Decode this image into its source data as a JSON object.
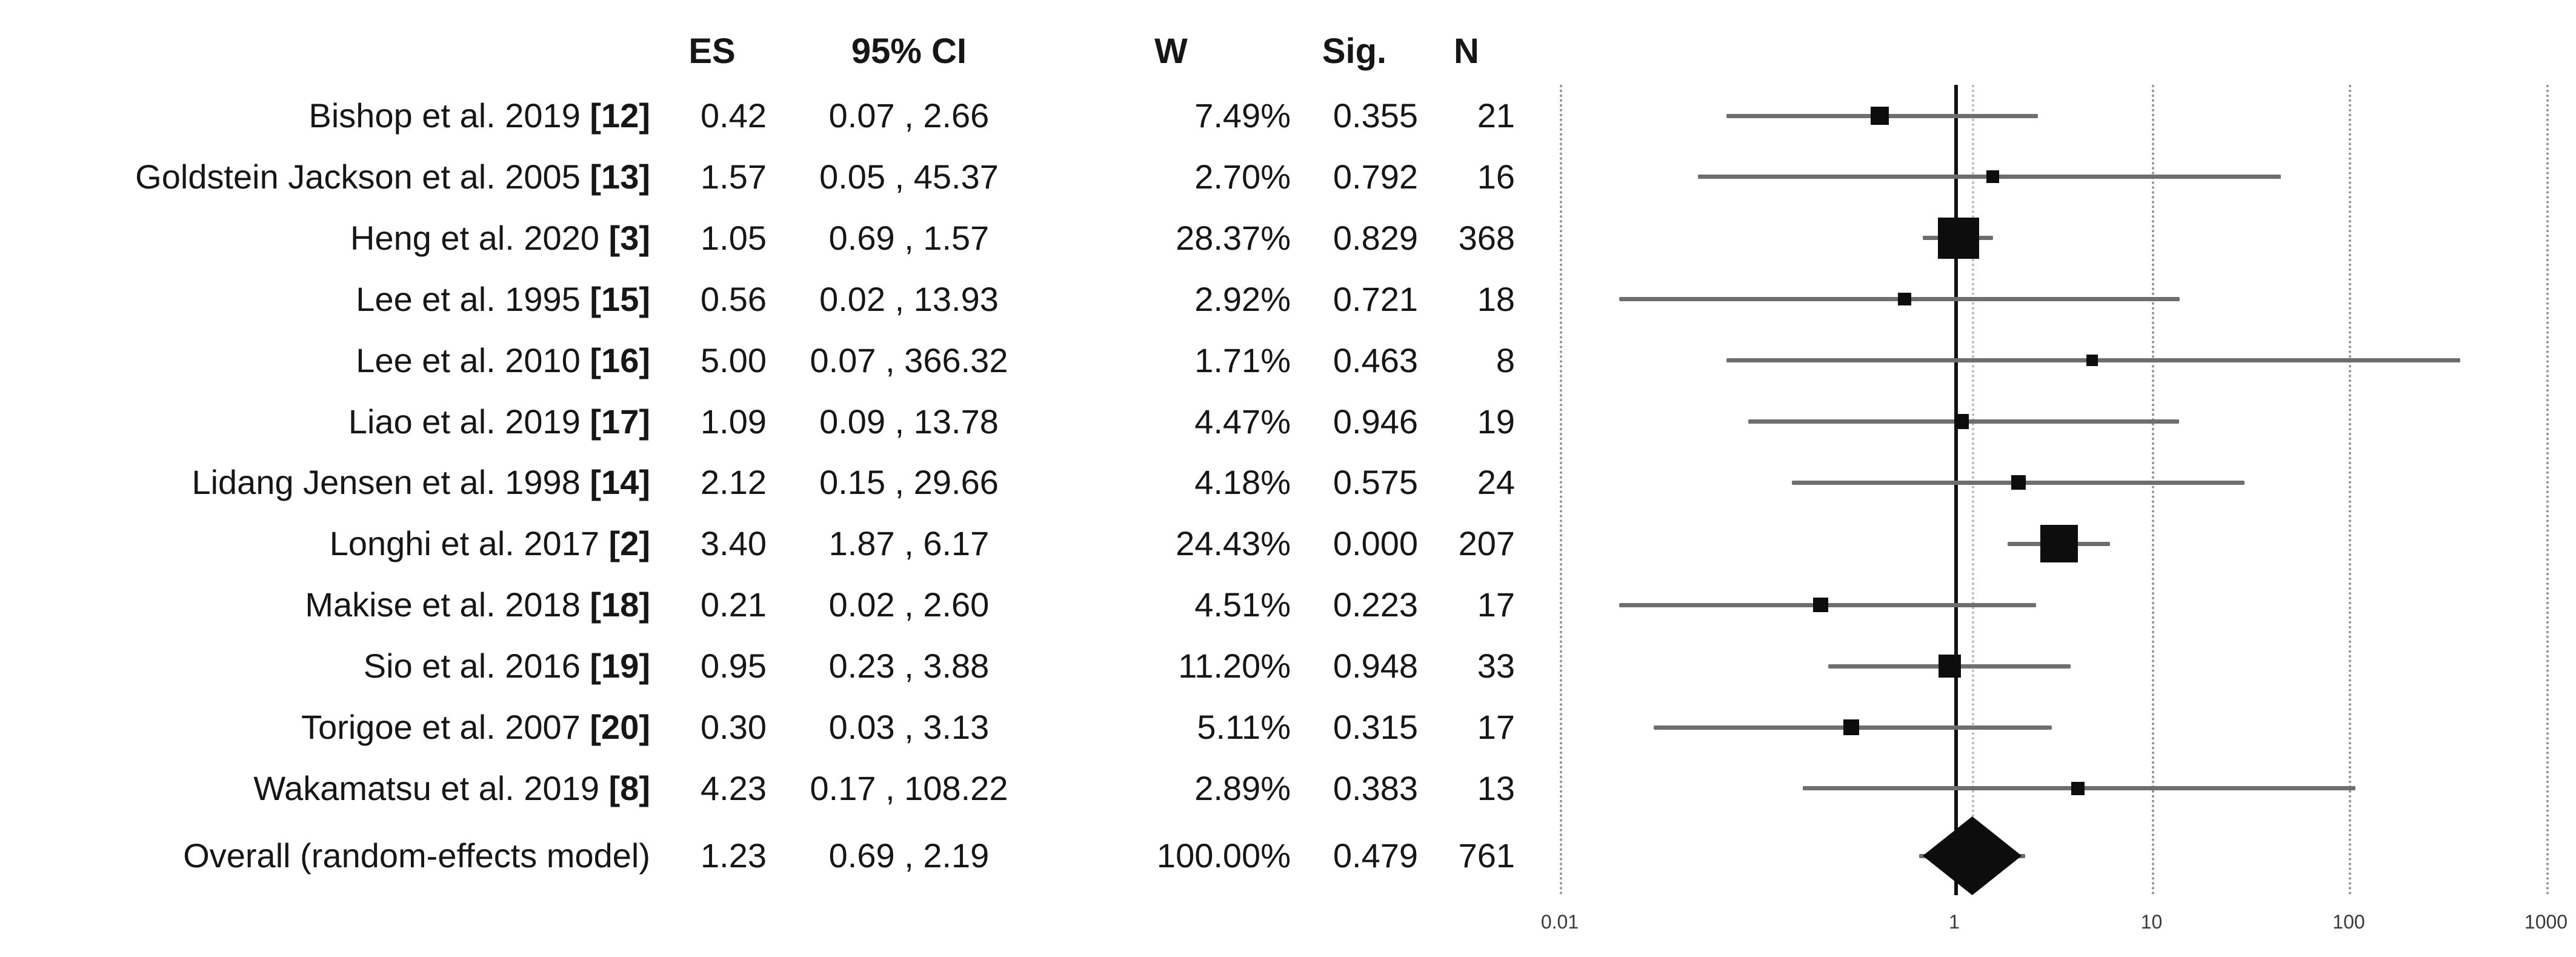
{
  "table": {
    "headers": {
      "study": "",
      "es": "ES",
      "ci": "95% CI",
      "w": "W",
      "sig": "Sig.",
      "n": "N"
    },
    "rows": [
      {
        "study": "Bishop et al. 2019",
        "ref": "[12]",
        "es": "0.42",
        "ci": "0.07 , 2.66",
        "w": "7.49%",
        "sig": "0.355",
        "n": "21"
      },
      {
        "study": "Goldstein Jackson et al. 2005",
        "ref": "[13]",
        "es": "1.57",
        "ci": "0.05 , 45.37",
        "w": "2.70%",
        "sig": "0.792",
        "n": "16"
      },
      {
        "study": "Heng et al. 2020",
        "ref": "[3]",
        "es": "1.05",
        "ci": "0.69 , 1.57",
        "w": "28.37%",
        "sig": "0.829",
        "n": "368"
      },
      {
        "study": "Lee et al. 1995",
        "ref": "[15]",
        "es": "0.56",
        "ci": "0.02 , 13.93",
        "w": "2.92%",
        "sig": "0.721",
        "n": "18"
      },
      {
        "study": "Lee et al. 2010",
        "ref": "[16]",
        "es": "5.00",
        "ci": "0.07 , 366.32",
        "w": "1.71%",
        "sig": "0.463",
        "n": "8"
      },
      {
        "study": "Liao et al. 2019",
        "ref": "[17]",
        "es": "1.09",
        "ci": "0.09 , 13.78",
        "w": "4.47%",
        "sig": "0.946",
        "n": "19"
      },
      {
        "study": "Lidang Jensen et al. 1998",
        "ref": "[14]",
        "es": "2.12",
        "ci": "0.15 , 29.66",
        "w": "4.18%",
        "sig": "0.575",
        "n": "24"
      },
      {
        "study": "Longhi et al. 2017",
        "ref": "[2]",
        "es": "3.40",
        "ci": "1.87 , 6.17",
        "w": "24.43%",
        "sig": "0.000",
        "n": "207"
      },
      {
        "study": "Makise et al. 2018",
        "ref": "[18]",
        "es": "0.21",
        "ci": "0.02 , 2.60",
        "w": "4.51%",
        "sig": "0.223",
        "n": "17"
      },
      {
        "study": "Sio et al. 2016",
        "ref": "[19]",
        "es": "0.95",
        "ci": "0.23 , 3.88",
        "w": "11.20%",
        "sig": "0.948",
        "n": "33"
      },
      {
        "study": "Torigoe et al. 2007",
        "ref": "[20]",
        "es": "0.30",
        "ci": "0.03 , 3.13",
        "w": "5.11%",
        "sig": "0.315",
        "n": "17"
      },
      {
        "study": "Wakamatsu et al. 2019",
        "ref": "[8]",
        "es": "4.23",
        "ci": "0.17 , 108.22",
        "w": "2.89%",
        "sig": "0.383",
        "n": "13"
      },
      {
        "study": "Overall (random-effects model)",
        "ref": "",
        "es": "1.23",
        "ci": "0.69 , 2.19",
        "w": "100.00%",
        "sig": "0.479",
        "n": "761"
      }
    ]
  },
  "chart_data": {
    "type": "forest",
    "x_scale": "log10",
    "x_ticks": [
      0.01,
      1,
      10,
      100,
      1000
    ],
    "x_tick_labels": [
      "0.01",
      "1",
      "10",
      "100",
      "1000"
    ],
    "no_effect_value": 1,
    "grid": "vertical-dotted-per-decade",
    "legend_position": "none",
    "studies": [
      {
        "name": "Bishop et al. 2019 [12]",
        "es": 0.42,
        "ci_low": 0.07,
        "ci_high": 2.66,
        "weight_pct": 7.49,
        "sig": 0.355,
        "n": 21
      },
      {
        "name": "Goldstein Jackson et al. 2005 [13]",
        "es": 1.57,
        "ci_low": 0.05,
        "ci_high": 45.37,
        "weight_pct": 2.7,
        "sig": 0.792,
        "n": 16
      },
      {
        "name": "Heng et al. 2020 [3]",
        "es": 1.05,
        "ci_low": 0.69,
        "ci_high": 1.57,
        "weight_pct": 28.37,
        "sig": 0.829,
        "n": 368
      },
      {
        "name": "Lee et al. 1995 [15]",
        "es": 0.56,
        "ci_low": 0.02,
        "ci_high": 13.93,
        "weight_pct": 2.92,
        "sig": 0.721,
        "n": 18
      },
      {
        "name": "Lee et al. 2010 [16]",
        "es": 5.0,
        "ci_low": 0.07,
        "ci_high": 366.32,
        "weight_pct": 1.71,
        "sig": 0.463,
        "n": 8
      },
      {
        "name": "Liao et al. 2019 [17]",
        "es": 1.09,
        "ci_low": 0.09,
        "ci_high": 13.78,
        "weight_pct": 4.47,
        "sig": 0.946,
        "n": 19
      },
      {
        "name": "Lidang Jensen et al. 1998 [14]",
        "es": 2.12,
        "ci_low": 0.15,
        "ci_high": 29.66,
        "weight_pct": 4.18,
        "sig": 0.575,
        "n": 24
      },
      {
        "name": "Longhi et al. 2017 [2]",
        "es": 3.4,
        "ci_low": 1.87,
        "ci_high": 6.17,
        "weight_pct": 24.43,
        "sig": 0.0,
        "n": 207
      },
      {
        "name": "Makise et al. 2018 [18]",
        "es": 0.21,
        "ci_low": 0.02,
        "ci_high": 2.6,
        "weight_pct": 4.51,
        "sig": 0.223,
        "n": 17
      },
      {
        "name": "Sio et al. 2016 [19]",
        "es": 0.95,
        "ci_low": 0.23,
        "ci_high": 3.88,
        "weight_pct": 11.2,
        "sig": 0.948,
        "n": 33
      },
      {
        "name": "Torigoe et al. 2007 [20]",
        "es": 0.3,
        "ci_low": 0.03,
        "ci_high": 3.13,
        "weight_pct": 5.11,
        "sig": 0.315,
        "n": 17
      },
      {
        "name": "Wakamatsu et al. 2019 [8]",
        "es": 4.23,
        "ci_low": 0.17,
        "ci_high": 108.22,
        "weight_pct": 2.89,
        "sig": 0.383,
        "n": 13
      }
    ],
    "overall": {
      "name": "Overall (random-effects model)",
      "es": 1.23,
      "ci_low": 0.69,
      "ci_high": 2.19,
      "weight_pct": 100.0,
      "sig": 0.479,
      "n": 761
    }
  },
  "colors": {
    "text": "#161616",
    "marker": "#0d0d0d",
    "ci_line": "#6e6e6e",
    "no_effect_line": "#111111",
    "gridline": "#8f8f8f",
    "overall_ref_line": "#b9b9b9",
    "background": "#ffffff"
  }
}
